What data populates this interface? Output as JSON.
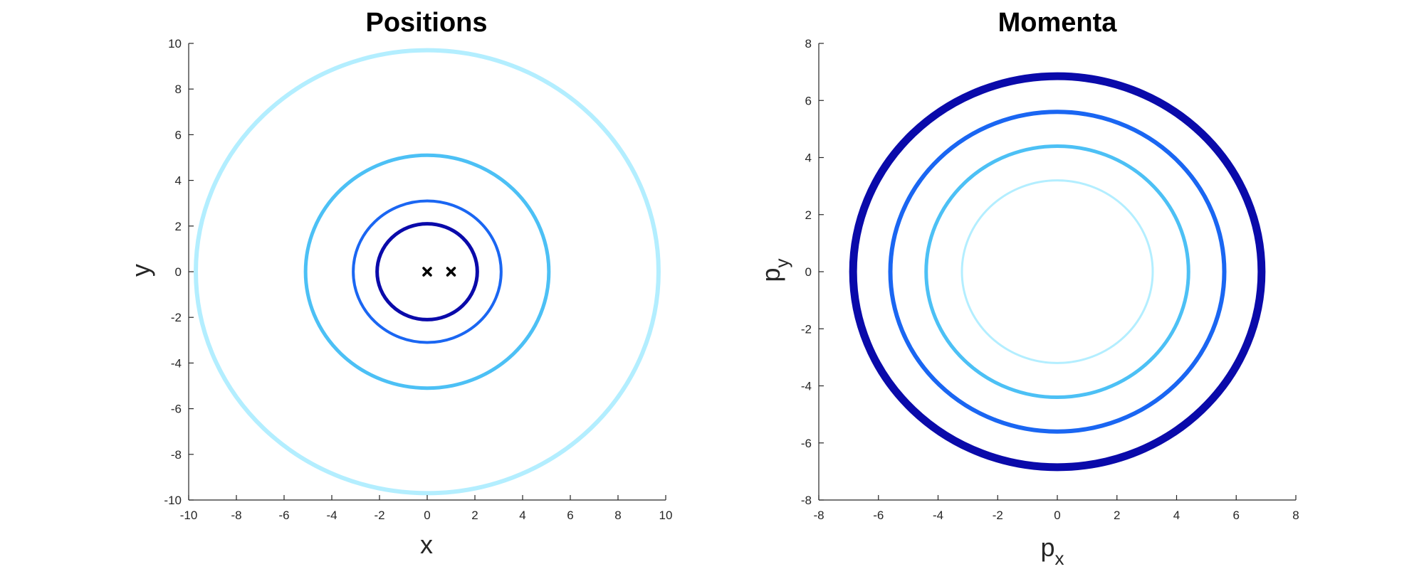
{
  "chart_data": [
    {
      "type": "line",
      "title": "Positions",
      "xlabel": "x",
      "ylabel": "y",
      "xlim": [
        -10,
        10
      ],
      "ylim": [
        -10,
        10
      ],
      "xticks": [
        -10,
        -8,
        -6,
        -4,
        -2,
        0,
        2,
        4,
        6,
        8,
        10
      ],
      "yticks": [
        -10,
        -8,
        -6,
        -4,
        -2,
        0,
        2,
        4,
        6,
        8,
        10
      ],
      "grid": false,
      "series": [
        {
          "shape": "circle",
          "center": [
            0,
            0
          ],
          "radius": 9.7,
          "color": "#b3eeff",
          "line_weight": 6
        },
        {
          "shape": "circle",
          "center": [
            0,
            0
          ],
          "radius": 5.1,
          "color": "#4cc0f5",
          "line_weight": 5
        },
        {
          "shape": "circle",
          "center": [
            0,
            0
          ],
          "radius": 3.1,
          "color": "#1a66f2",
          "line_weight": 4
        },
        {
          "shape": "circle",
          "center": [
            0,
            0
          ],
          "radius": 2.1,
          "color": "#0a0aaa",
          "line_weight": 5
        }
      ],
      "markers": [
        {
          "symbol": "x",
          "x": 0,
          "y": 0,
          "color": "#000000"
        },
        {
          "symbol": "x",
          "x": 1,
          "y": 0,
          "color": "#000000"
        }
      ]
    },
    {
      "type": "line",
      "title": "Momenta",
      "xlabel": "p",
      "xlabel_subscript": "x",
      "ylabel": "p",
      "ylabel_subscript": "y",
      "xlim": [
        -8,
        8
      ],
      "ylim": [
        -8,
        8
      ],
      "xticks": [
        -8,
        -6,
        -4,
        -2,
        0,
        2,
        4,
        6,
        8
      ],
      "yticks": [
        -8,
        -6,
        -4,
        -2,
        0,
        2,
        4,
        6,
        8
      ],
      "grid": false,
      "series": [
        {
          "shape": "circle",
          "center": [
            0,
            0
          ],
          "radius": 3.2,
          "color": "#b3eeff",
          "line_weight": 3
        },
        {
          "shape": "circle",
          "center": [
            0,
            0
          ],
          "radius": 4.4,
          "color": "#4cc0f5",
          "line_weight": 5
        },
        {
          "shape": "circle",
          "center": [
            0,
            0
          ],
          "radius": 5.6,
          "color": "#1a66f2",
          "line_weight": 6
        },
        {
          "shape": "circle",
          "center": [
            0,
            0
          ],
          "radius": 6.85,
          "color": "#0a0aaa",
          "line_weight": 11
        }
      ],
      "markers": []
    }
  ]
}
